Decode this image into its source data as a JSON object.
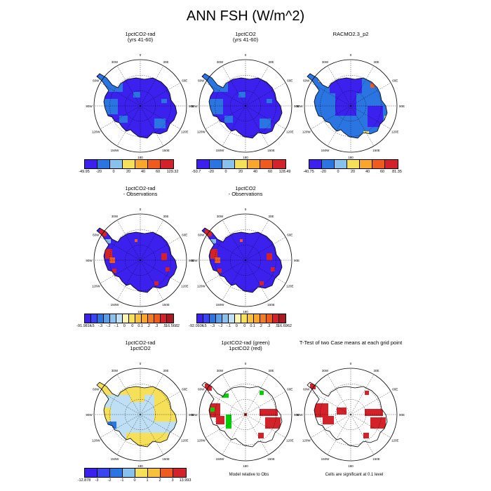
{
  "figure": {
    "title": "ANN FSH (W/m^2)"
  },
  "longitude_labels": [
    "0",
    "30E",
    "60E",
    "90E",
    "120E",
    "150E",
    "180",
    "150W",
    "120W",
    "90W",
    "60W",
    "30W"
  ],
  "panels": [
    {
      "id": "p1",
      "title_lines": [
        "1pctCO2-rad",
        "(yrs 41-60)"
      ],
      "fill": "blue",
      "colorbar": {
        "colors": [
          "#3b20ee",
          "#2b75e2",
          "#88c1ee",
          "#f6e05a",
          "#f9a62e",
          "#ef5b1f",
          "#d3222a"
        ],
        "labels": [
          "-49.95",
          "-20",
          "0",
          "20",
          "40",
          "60",
          "129.32"
        ]
      }
    },
    {
      "id": "p2",
      "title_lines": [
        "1pctCO2",
        "(yrs 41-60)"
      ],
      "fill": "blue",
      "colorbar": {
        "colors": [
          "#3b20ee",
          "#2b75e2",
          "#88c1ee",
          "#f6e05a",
          "#f9a62e",
          "#ef5b1f",
          "#d3222a"
        ],
        "labels": [
          "-50.7",
          "-20",
          "0",
          "20",
          "40",
          "60",
          "128.49"
        ]
      }
    },
    {
      "id": "p3",
      "title_lines": [
        "RACMO2.3_p2"
      ],
      "fill": "racmo",
      "colorbar": {
        "colors": [
          "#3b20ee",
          "#2b75e2",
          "#88c1ee",
          "#f6e05a",
          "#f9a62e",
          "#ef5b1f",
          "#d3222a"
        ],
        "labels": [
          "-40.75",
          "-20",
          "0",
          "20",
          "40",
          "60",
          "81.35"
        ]
      }
    },
    {
      "id": "p4",
      "title_lines": [
        "1pctCO2-rad",
        "- Observations"
      ],
      "fill": "diff",
      "colorbar": {
        "colors": [
          "#3b20ee",
          "#3a44ef",
          "#2b75e2",
          "#5d9de6",
          "#88c1ee",
          "#bfe0f4",
          "#fdf4b0",
          "#f6e05a",
          "#f9c13a",
          "#f9a62e",
          "#f37b22",
          "#ef5b1f",
          "#d3222a",
          "#a51c22"
        ],
        "labels": [
          "-91.9816",
          "-.5",
          "-.3",
          "-.2",
          "-.1",
          "0",
          "0",
          "0.1",
          ".2",
          ".3",
          ".5",
          "16.5682"
        ]
      }
    },
    {
      "id": "p5",
      "title_lines": [
        "1pctCO2",
        "- Observations"
      ],
      "fill": "diff",
      "colorbar": {
        "colors": [
          "#3b20ee",
          "#3a44ef",
          "#2b75e2",
          "#5d9de6",
          "#88c1ee",
          "#bfe0f4",
          "#fdf4b0",
          "#f6e05a",
          "#f9c13a",
          "#f9a62e",
          "#f37b22",
          "#ef5b1f",
          "#d3222a",
          "#a51c22"
        ],
        "labels": [
          "-92.0936",
          "-.5",
          "-.3",
          "-.2",
          "-.1",
          "0",
          "0",
          "0.1",
          ".2",
          ".3",
          ".5",
          "16.6962"
        ]
      }
    },
    {
      "id": "p7",
      "title_lines": [
        "1pctCO2-rad",
        "1pctCO2"
      ],
      "fill": "yellowblue",
      "colorbar": {
        "colors": [
          "#3b20ee",
          "#3a44ef",
          "#2b75e2",
          "#88c1ee",
          "#f6e05a",
          "#f9c13a",
          "#ef5b1f",
          "#d3222a"
        ],
        "labels": [
          "-12.878",
          "-3",
          "-2",
          "-1",
          "0",
          "1",
          "2",
          "3",
          "13.993"
        ]
      }
    },
    {
      "id": "p8",
      "title_lines": [
        "1pctCO2-rad (green)",
        "1pctCO2 (red)"
      ],
      "fill": "redgreen"
    },
    {
      "id": "p9",
      "title_lines": [
        "T-Test of two Case means at each grid point"
      ],
      "fill": "red"
    }
  ],
  "notes": {
    "model_relative": "Model relative to Obs",
    "significance": "Cells are significant at 0.1 level"
  }
}
